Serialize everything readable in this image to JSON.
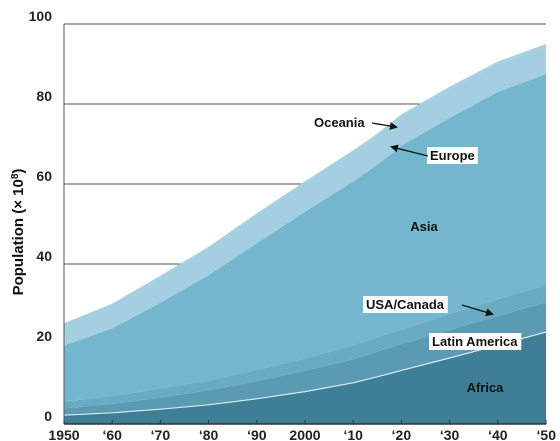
{
  "chart_data": {
    "type": "area",
    "stacked": true,
    "ylabel_main": "Population (",
    "ylabel_sym": "×",
    "ylabel_base": " 10",
    "ylabel_exp": "8",
    "ylabel_close": ")",
    "ylim": [
      0,
      100
    ],
    "xlim": [
      1950,
      2050
    ],
    "y_ticks": [
      0,
      20,
      40,
      60,
      80,
      100
    ],
    "x_ticks": [
      {
        "value": 1950,
        "label": "1950"
      },
      {
        "value": 1960,
        "label": "‘60"
      },
      {
        "value": 1970,
        "label": "‘70"
      },
      {
        "value": 1980,
        "label": "‘80"
      },
      {
        "value": 1990,
        "label": "‘90"
      },
      {
        "value": 2000,
        "label": "2000"
      },
      {
        "value": 2010,
        "label": "‘10"
      },
      {
        "value": 2020,
        "label": "‘20"
      },
      {
        "value": 2030,
        "label": "‘30"
      },
      {
        "value": 2040,
        "label": "‘40"
      },
      {
        "value": 2050,
        "label": "‘50"
      }
    ],
    "grid": true,
    "x": [
      1950,
      1960,
      1970,
      1980,
      1990,
      2000,
      2010,
      2015,
      2020,
      2030,
      2040,
      2050
    ],
    "series": [
      {
        "name": "Africa",
        "color": "#3f7f96",
        "values": [
          2.2,
          2.8,
          3.7,
          4.8,
          6.3,
          8.1,
          10.3,
          11.8,
          13.4,
          16.5,
          19.7,
          23.0
        ]
      },
      {
        "name": "Latin America",
        "color": "#5a9ab2",
        "values": [
          1.7,
          2.2,
          2.9,
          3.6,
          4.4,
          5.2,
          5.9,
          6.3,
          6.5,
          7.0,
          7.3,
          7.4
        ]
      },
      {
        "name": "USA/Canada",
        "color": "#6aabc4",
        "values": [
          1.7,
          2.0,
          2.3,
          2.5,
          2.8,
          3.1,
          3.4,
          3.6,
          3.7,
          4.0,
          4.2,
          4.3
        ]
      },
      {
        "name": "Asia",
        "color": "#75b6cf",
        "values": [
          14.0,
          16.9,
          21.4,
          26.3,
          31.7,
          36.7,
          41.0,
          43.1,
          46.0,
          49.0,
          51.8,
          52.8
        ]
      },
      {
        "name": "Europe",
        "color": "#a3cfe0",
        "values": [
          5.5,
          6.0,
          6.6,
          6.9,
          7.2,
          7.3,
          7.4,
          7.4,
          7.4,
          7.3,
          7.1,
          6.9
        ]
      },
      {
        "name": "Oceania",
        "color": "#a3cfe0",
        "values": [
          0.1,
          0.2,
          0.2,
          0.2,
          0.3,
          0.3,
          0.4,
          0.4,
          0.4,
          0.5,
          0.5,
          0.6
        ]
      }
    ],
    "annotations": [
      {
        "text": "Oceania",
        "arrow": true
      },
      {
        "text": "Europe",
        "arrow": true
      },
      {
        "text": "Asia",
        "arrow": false
      },
      {
        "text": "USA/Canada",
        "arrow": true
      },
      {
        "text": "Latin America",
        "arrow": false
      },
      {
        "text": "Africa",
        "arrow": false
      }
    ]
  }
}
